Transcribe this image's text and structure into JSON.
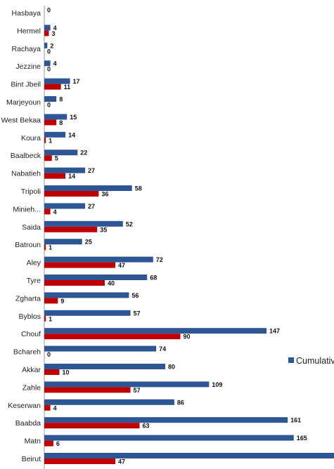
{
  "chart_data": {
    "type": "bar",
    "orientation": "horizontal",
    "categories": [
      "Hasbaya",
      "Hermel",
      "Rachaya",
      "Jezzine",
      "Bint Jbeil",
      "Marjeyoun",
      "West Bekaa",
      "Koura",
      "Baalbeck",
      "Nabatieh",
      "Tripoli",
      "Minieh...",
      "Saida",
      "Batroun",
      "Aley",
      "Tyre",
      "Zgharta",
      "Byblos",
      "Chouf",
      "Bchareh",
      "Akkar",
      "Zahle",
      "Keserwan",
      "Baabda",
      "Matn",
      "Beirut"
    ],
    "series": [
      {
        "name": "Cumulative",
        "color": "#2e5594",
        "values": [
          0,
          4,
          2,
          4,
          17,
          8,
          15,
          14,
          22,
          27,
          58,
          27,
          52,
          25,
          72,
          68,
          56,
          57,
          147,
          74,
          80,
          109,
          86,
          161,
          165,
          null
        ],
        "labels": [
          "0",
          "4",
          "2",
          "4",
          "17",
          "8",
          "15",
          "14",
          "22",
          "27",
          "58",
          "27",
          "52",
          "25",
          "72",
          "68",
          "56",
          "57",
          "147",
          "74",
          "80",
          "109",
          "86",
          "161",
          "165",
          ""
        ]
      },
      {
        "color": "#c00000",
        "values": [
          null,
          3,
          0,
          0,
          11,
          0,
          8,
          1,
          5,
          14,
          36,
          4,
          35,
          1,
          47,
          40,
          9,
          1,
          90,
          0,
          10,
          57,
          4,
          63,
          6,
          47
        ],
        "labels": [
          "",
          "3",
          "0",
          "0",
          "11",
          "0",
          "8",
          "1",
          "5",
          "14",
          "36",
          "4",
          "35",
          "1",
          "47",
          "40",
          "9",
          "1",
          "90",
          "0",
          "10",
          "57",
          "4",
          "63",
          "6",
          "47"
        ]
      }
    ],
    "legend": {
      "position": "right",
      "entries": [
        "Cumulative"
      ]
    },
    "grid": false,
    "title": "",
    "xlabel": "",
    "ylabel": ""
  }
}
